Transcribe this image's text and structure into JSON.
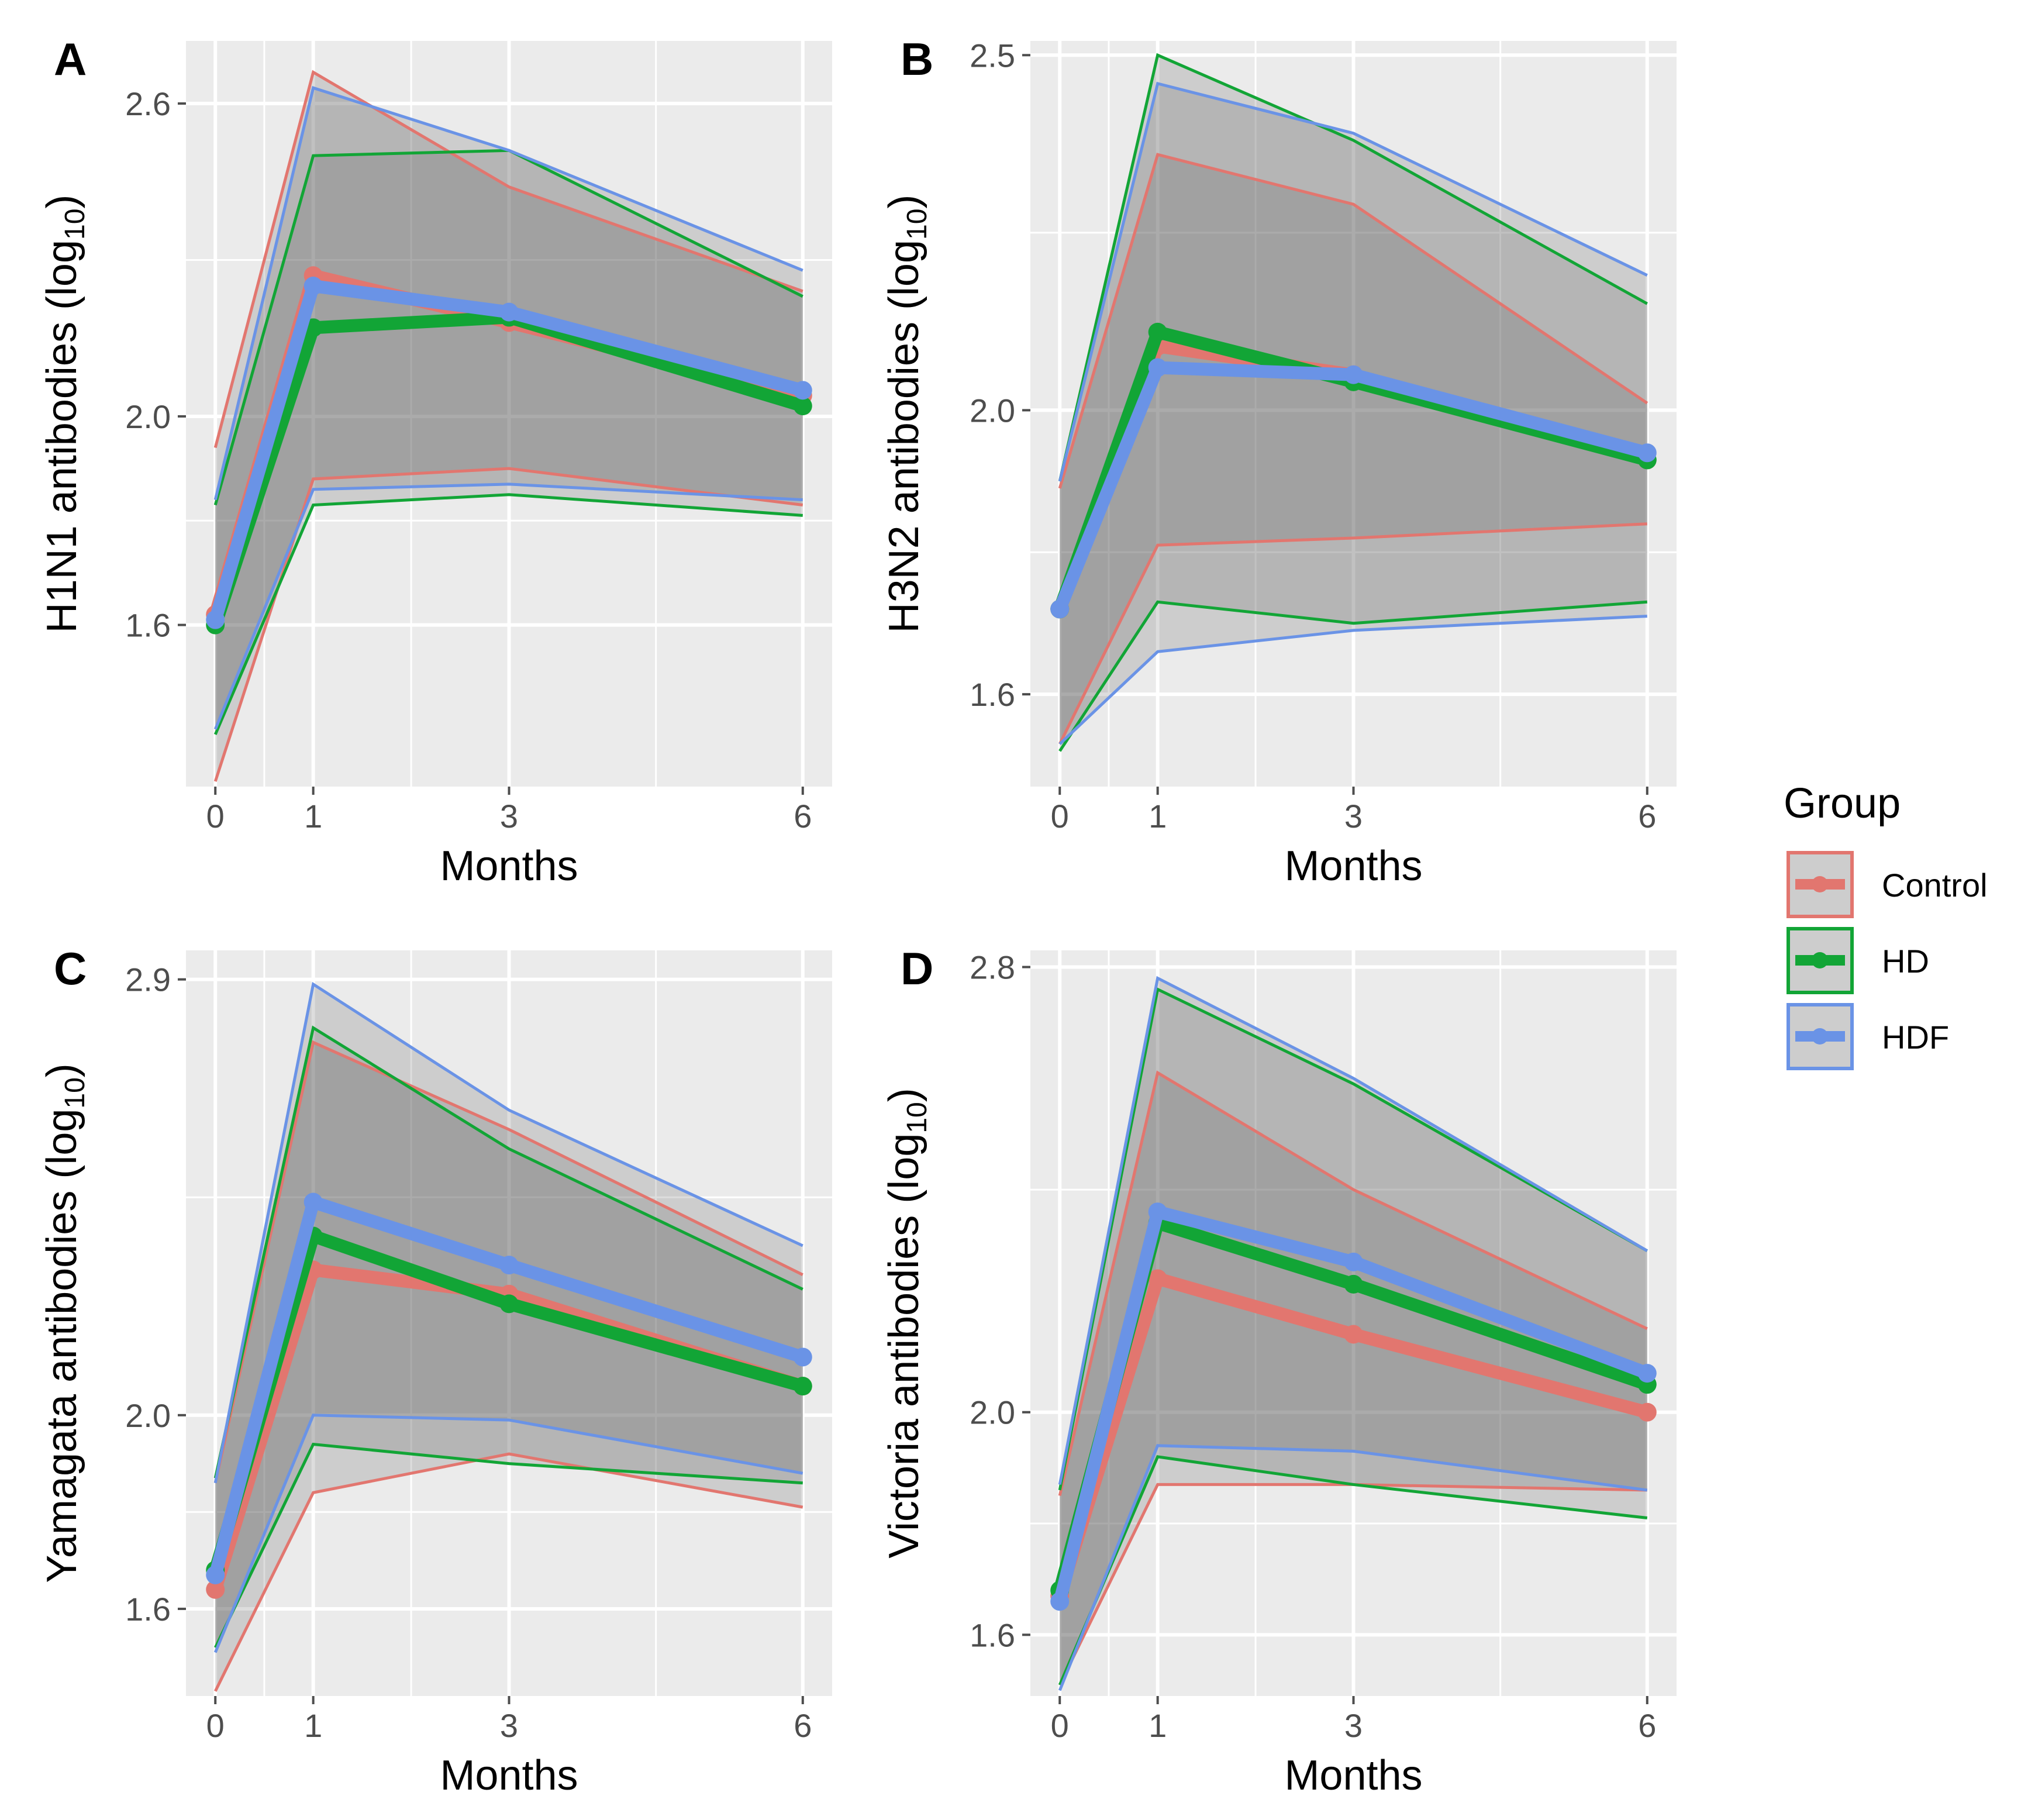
{
  "legend": {
    "title": "Group",
    "entries": [
      {
        "name": "Control",
        "color": "#E2766F"
      },
      {
        "name": "HD",
        "color": "#12A536"
      },
      {
        "name": "HDF",
        "color": "#6A93E6"
      }
    ]
  },
  "style": {
    "panel_bg": "#EBEBEB",
    "grid": "#FFFFFF",
    "ribbon_fill": "#555555",
    "ribbon_opacity": 0.2,
    "tick_color": "#4D4D4D"
  },
  "chart_data": [
    {
      "id": "A",
      "type": "line",
      "panel_label": "A",
      "xlabel": "Months",
      "ylabel_main": "H1N1 antibodies (log",
      "ylabel_sub": "10",
      "ylabel_close": ")",
      "x": [
        0,
        1,
        3,
        6
      ],
      "x_tick_labels": [
        "0",
        "1",
        "3",
        "6"
      ],
      "xlim": [
        -0.3,
        6.3
      ],
      "ylim": [
        1.29,
        2.72
      ],
      "y_ticks": [
        1.6,
        2.0,
        2.6
      ],
      "y_tick_labels": [
        "1.6",
        "2.0",
        "2.6"
      ],
      "series": [
        {
          "name": "Control",
          "mean": [
            1.62,
            2.27,
            2.18,
            2.04
          ],
          "upper": [
            1.94,
            2.66,
            2.44,
            2.24
          ],
          "lower": [
            1.3,
            1.88,
            1.9,
            1.83
          ]
        },
        {
          "name": "HD",
          "mean": [
            1.6,
            2.17,
            2.19,
            2.02
          ],
          "upper": [
            1.83,
            2.5,
            2.51,
            2.23
          ],
          "lower": [
            1.39,
            1.83,
            1.85,
            1.81
          ]
        },
        {
          "name": "HDF",
          "mean": [
            1.61,
            2.25,
            2.2,
            2.05
          ],
          "upper": [
            1.84,
            2.63,
            2.51,
            2.28
          ],
          "lower": [
            1.4,
            1.86,
            1.87,
            1.84
          ]
        }
      ]
    },
    {
      "id": "B",
      "type": "line",
      "panel_label": "B",
      "xlabel": "Months",
      "ylabel_main": "H3N2 antibodies (log",
      "ylabel_sub": "10",
      "ylabel_close": ")",
      "x": [
        0,
        1,
        3,
        6
      ],
      "x_tick_labels": [
        "0",
        "1",
        "3",
        "6"
      ],
      "xlim": [
        -0.3,
        6.3
      ],
      "ylim": [
        1.47,
        2.52
      ],
      "y_ticks": [
        1.6,
        2.0,
        2.5
      ],
      "y_tick_labels": [
        "1.6",
        "2.0",
        "2.5"
      ],
      "series": [
        {
          "name": "Control",
          "mean": [
            1.72,
            2.09,
            2.05,
            1.93
          ],
          "upper": [
            1.89,
            2.36,
            2.29,
            2.01
          ],
          "lower": [
            1.53,
            1.81,
            1.82,
            1.84
          ]
        },
        {
          "name": "HD",
          "mean": [
            1.72,
            2.11,
            2.04,
            1.93
          ],
          "upper": [
            1.9,
            2.5,
            2.38,
            2.15
          ],
          "lower": [
            1.52,
            1.73,
            1.7,
            1.73
          ]
        },
        {
          "name": "HDF",
          "mean": [
            1.72,
            2.06,
            2.05,
            1.94
          ],
          "upper": [
            1.9,
            2.46,
            2.39,
            2.19
          ],
          "lower": [
            1.53,
            1.66,
            1.69,
            1.71
          ]
        }
      ]
    },
    {
      "id": "C",
      "type": "line",
      "panel_label": "C",
      "xlabel": "Months",
      "ylabel_main": "Yamagata antibodies (log",
      "ylabel_sub": "10",
      "ylabel_close": ")",
      "x": [
        0,
        1,
        3,
        6
      ],
      "x_tick_labels": [
        "0",
        "1",
        "3",
        "6"
      ],
      "xlim": [
        -0.3,
        6.3
      ],
      "ylim": [
        1.42,
        2.96
      ],
      "y_ticks": [
        1.6,
        2.0,
        2.9
      ],
      "y_tick_labels": [
        "1.6",
        "2.0",
        "2.9"
      ],
      "series": [
        {
          "name": "Control",
          "mean": [
            1.64,
            2.3,
            2.25,
            2.06
          ],
          "upper": [
            1.86,
            2.77,
            2.59,
            2.29
          ],
          "lower": [
            1.43,
            1.84,
            1.92,
            1.81
          ]
        },
        {
          "name": "HD",
          "mean": [
            1.68,
            2.37,
            2.23,
            2.06
          ],
          "upper": [
            1.87,
            2.8,
            2.55,
            2.26
          ],
          "lower": [
            1.52,
            1.94,
            1.9,
            1.86
          ]
        },
        {
          "name": "HDF",
          "mean": [
            1.67,
            2.44,
            2.31,
            2.12
          ],
          "upper": [
            1.86,
            2.89,
            2.63,
            2.35
          ],
          "lower": [
            1.51,
            2.0,
            1.99,
            1.88
          ]
        }
      ]
    },
    {
      "id": "D",
      "type": "line",
      "panel_label": "D",
      "xlabel": "Months",
      "ylabel_main": "Victoria antibodies (log",
      "ylabel_sub": "10",
      "ylabel_close": ")",
      "x": [
        0,
        1,
        3,
        6
      ],
      "x_tick_labels": [
        "0",
        "1",
        "3",
        "6"
      ],
      "xlim": [
        -0.3,
        6.3
      ],
      "ylim": [
        1.49,
        2.83
      ],
      "y_ticks": [
        1.6,
        2.0,
        2.8
      ],
      "y_tick_labels": [
        "1.6",
        "2.0",
        "2.8"
      ],
      "series": [
        {
          "name": "Control",
          "mean": [
            1.67,
            2.24,
            2.14,
            2.0
          ],
          "upper": [
            1.85,
            2.61,
            2.4,
            2.15
          ],
          "lower": [
            1.51,
            1.87,
            1.87,
            1.86
          ]
        },
        {
          "name": "HD",
          "mean": [
            1.68,
            2.34,
            2.23,
            2.05
          ],
          "upper": [
            1.86,
            2.76,
            2.59,
            2.29
          ],
          "lower": [
            1.51,
            1.92,
            1.87,
            1.81
          ]
        },
        {
          "name": "HDF",
          "mean": [
            1.66,
            2.36,
            2.27,
            2.07
          ],
          "upper": [
            1.87,
            2.78,
            2.6,
            2.29
          ],
          "lower": [
            1.5,
            1.94,
            1.93,
            1.86
          ]
        }
      ]
    }
  ]
}
